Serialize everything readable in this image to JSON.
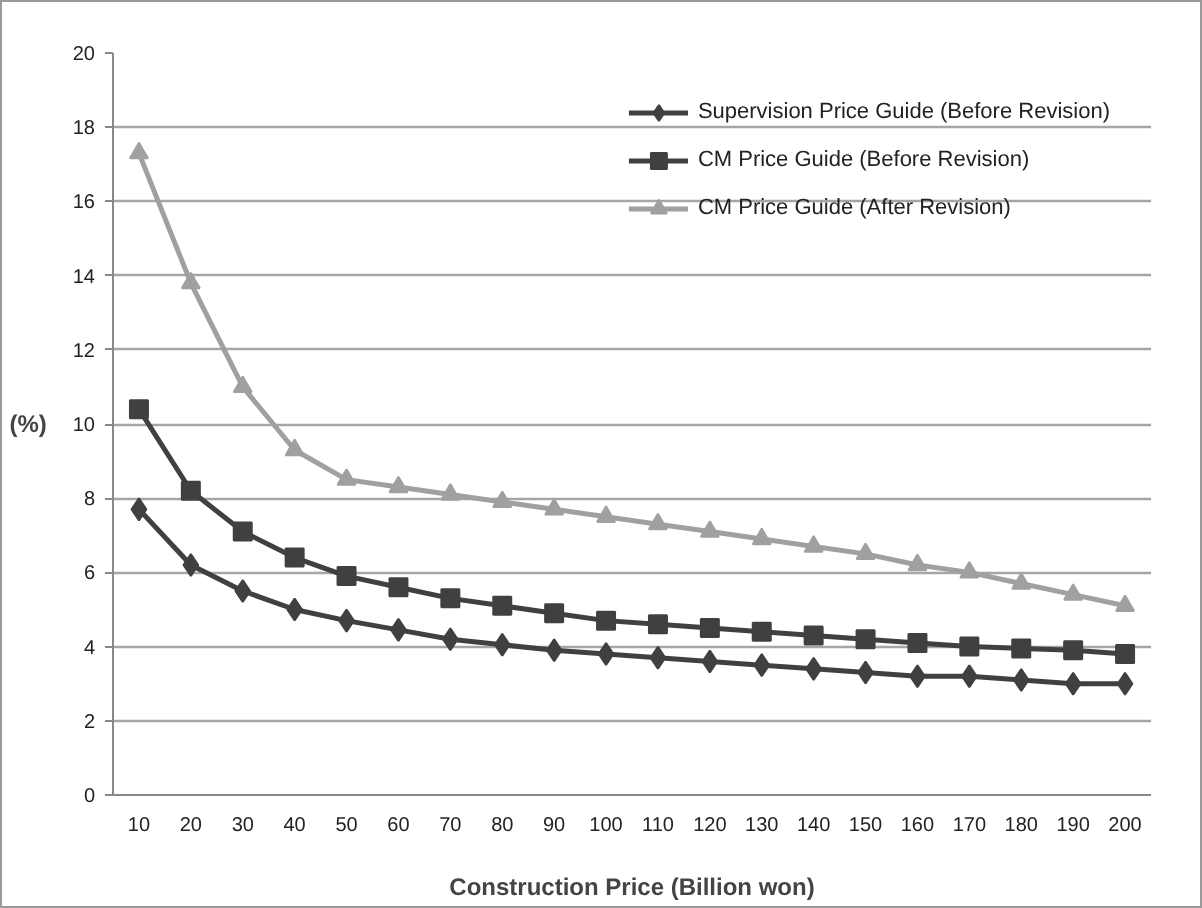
{
  "chart_data": {
    "type": "line",
    "xlabel": "Construction Price (Billion won)",
    "ylabel": "(%)",
    "categories": [
      "10",
      "20",
      "30",
      "40",
      "50",
      "60",
      "70",
      "80",
      "90",
      "100",
      "110",
      "120",
      "130",
      "140",
      "150",
      "160",
      "170",
      "180",
      "190",
      "200"
    ],
    "series": [
      {
        "name": "Supervision Price Guide (Before Revision)",
        "color": "#404040",
        "marker": "diamond",
        "values": [
          7.7,
          6.2,
          5.5,
          5.0,
          4.7,
          4.45,
          4.2,
          4.05,
          3.9,
          3.8,
          3.7,
          3.6,
          3.5,
          3.4,
          3.3,
          3.2,
          3.2,
          3.1,
          3.0,
          3.0
        ]
      },
      {
        "name": "CM Price Guide (Before Revision)",
        "color": "#404040",
        "marker": "square",
        "values": [
          10.4,
          8.2,
          7.1,
          6.4,
          5.9,
          5.6,
          5.3,
          5.1,
          4.9,
          4.7,
          4.6,
          4.5,
          4.4,
          4.3,
          4.2,
          4.1,
          4.0,
          3.95,
          3.9,
          3.8
        ]
      },
      {
        "name": "CM Price Guide (After Revision)",
        "color": "#a0a0a0",
        "marker": "triangle",
        "values": [
          17.3,
          13.8,
          11.0,
          9.3,
          8.5,
          8.3,
          8.1,
          7.9,
          7.7,
          7.5,
          7.3,
          7.1,
          6.9,
          6.7,
          6.5,
          6.2,
          6.0,
          5.7,
          5.4,
          5.1
        ]
      }
    ],
    "ylim": [
      0,
      20
    ],
    "yticks": [
      0,
      2,
      4,
      6,
      8,
      10,
      12,
      14,
      16,
      18,
      20
    ],
    "grid": "y",
    "legend": "top right",
    "line_style": "solid"
  }
}
